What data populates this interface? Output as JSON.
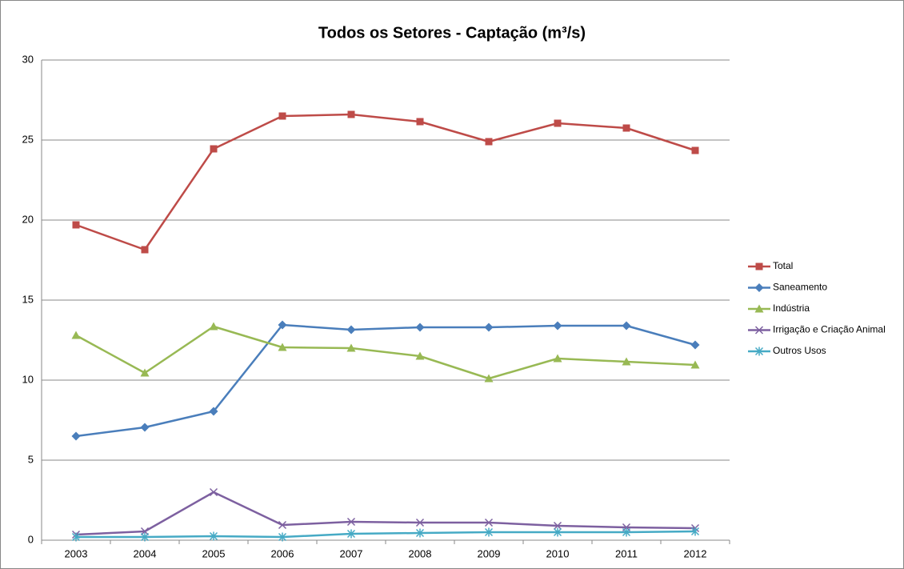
{
  "chart_data": {
    "type": "line",
    "title": "Todos os Setores - Captação (m³/s)",
    "categories": [
      "2003",
      "2004",
      "2005",
      "2006",
      "2007",
      "2008",
      "2009",
      "2010",
      "2011",
      "2012"
    ],
    "series": [
      {
        "name": "Total",
        "color": "#be4b48",
        "marker": "square",
        "values": [
          19.7,
          18.15,
          24.45,
          26.5,
          26.6,
          26.15,
          24.9,
          26.05,
          25.75,
          24.35
        ]
      },
      {
        "name": "Saneamento",
        "color": "#4a7ebb",
        "marker": "diamond",
        "values": [
          6.5,
          7.05,
          8.05,
          13.45,
          13.15,
          13.3,
          13.3,
          13.4,
          13.4,
          12.2
        ]
      },
      {
        "name": "Indústria",
        "color": "#98b954",
        "marker": "triangle",
        "values": [
          12.8,
          10.45,
          13.35,
          12.05,
          12.0,
          11.5,
          10.1,
          11.35,
          11.15,
          10.95
        ]
      },
      {
        "name": "Irrigação e Criação Animal",
        "color": "#7d60a0",
        "marker": "x",
        "values": [
          0.35,
          0.55,
          3.0,
          0.95,
          1.15,
          1.1,
          1.1,
          0.9,
          0.8,
          0.75
        ]
      },
      {
        "name": "Outros Usos",
        "color": "#46aac5",
        "marker": "star",
        "values": [
          0.2,
          0.2,
          0.25,
          0.2,
          0.4,
          0.45,
          0.5,
          0.5,
          0.5,
          0.55
        ]
      }
    ],
    "ylim": [
      0,
      30
    ],
    "yticks": [
      0,
      5,
      10,
      15,
      20,
      25,
      30
    ],
    "grid": true,
    "legend": "right"
  }
}
